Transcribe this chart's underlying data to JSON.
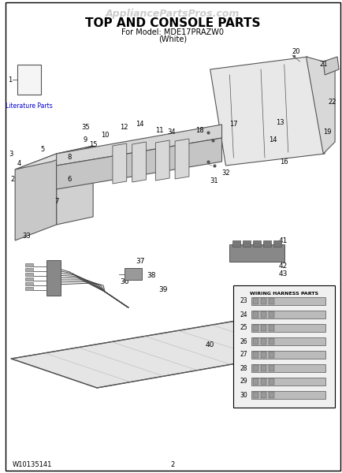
{
  "title": "TOP AND CONSOLE PARTS",
  "website": "AppliancePartsPros.com",
  "model_line": "For Model: MDE17PRAZW0",
  "color_line": "(White)",
  "part_number": "W10135141",
  "page_number": "2",
  "bg_color": "#ffffff",
  "border_color": "#000000",
  "diagram_color": "#555555",
  "text_color": "#000000",
  "watermark_color": "#cccccc",
  "title_fontsize": 11,
  "small_fontsize": 6.5,
  "label_fontsize": 6
}
